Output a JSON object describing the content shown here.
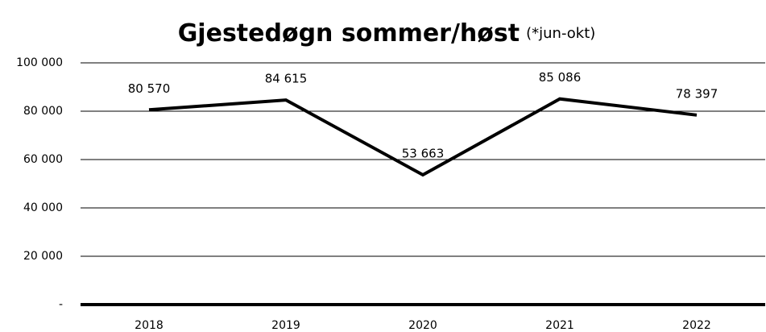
{
  "chart_data": {
    "type": "line",
    "title": "Gjestedøgn sommer/høst",
    "subtitle": "(*jun-okt)",
    "categories": [
      "2018",
      "2019",
      "2020",
      "2021",
      "2022"
    ],
    "values": [
      80570,
      84615,
      53663,
      85086,
      78397
    ],
    "value_labels": [
      "80 570",
      "84 615",
      "53 663",
      "85 086",
      "78 397"
    ],
    "color": "#000000",
    "ylim": [
      0,
      100000
    ],
    "yticks": [
      {
        "value": 0,
        "label": "-"
      },
      {
        "value": 20000,
        "label": "20 000"
      },
      {
        "value": 40000,
        "label": "40 000"
      },
      {
        "value": 60000,
        "label": "60 000"
      },
      {
        "value": 80000,
        "label": "80 000"
      },
      {
        "value": 100000,
        "label": "100 000"
      }
    ],
    "grid": true
  }
}
